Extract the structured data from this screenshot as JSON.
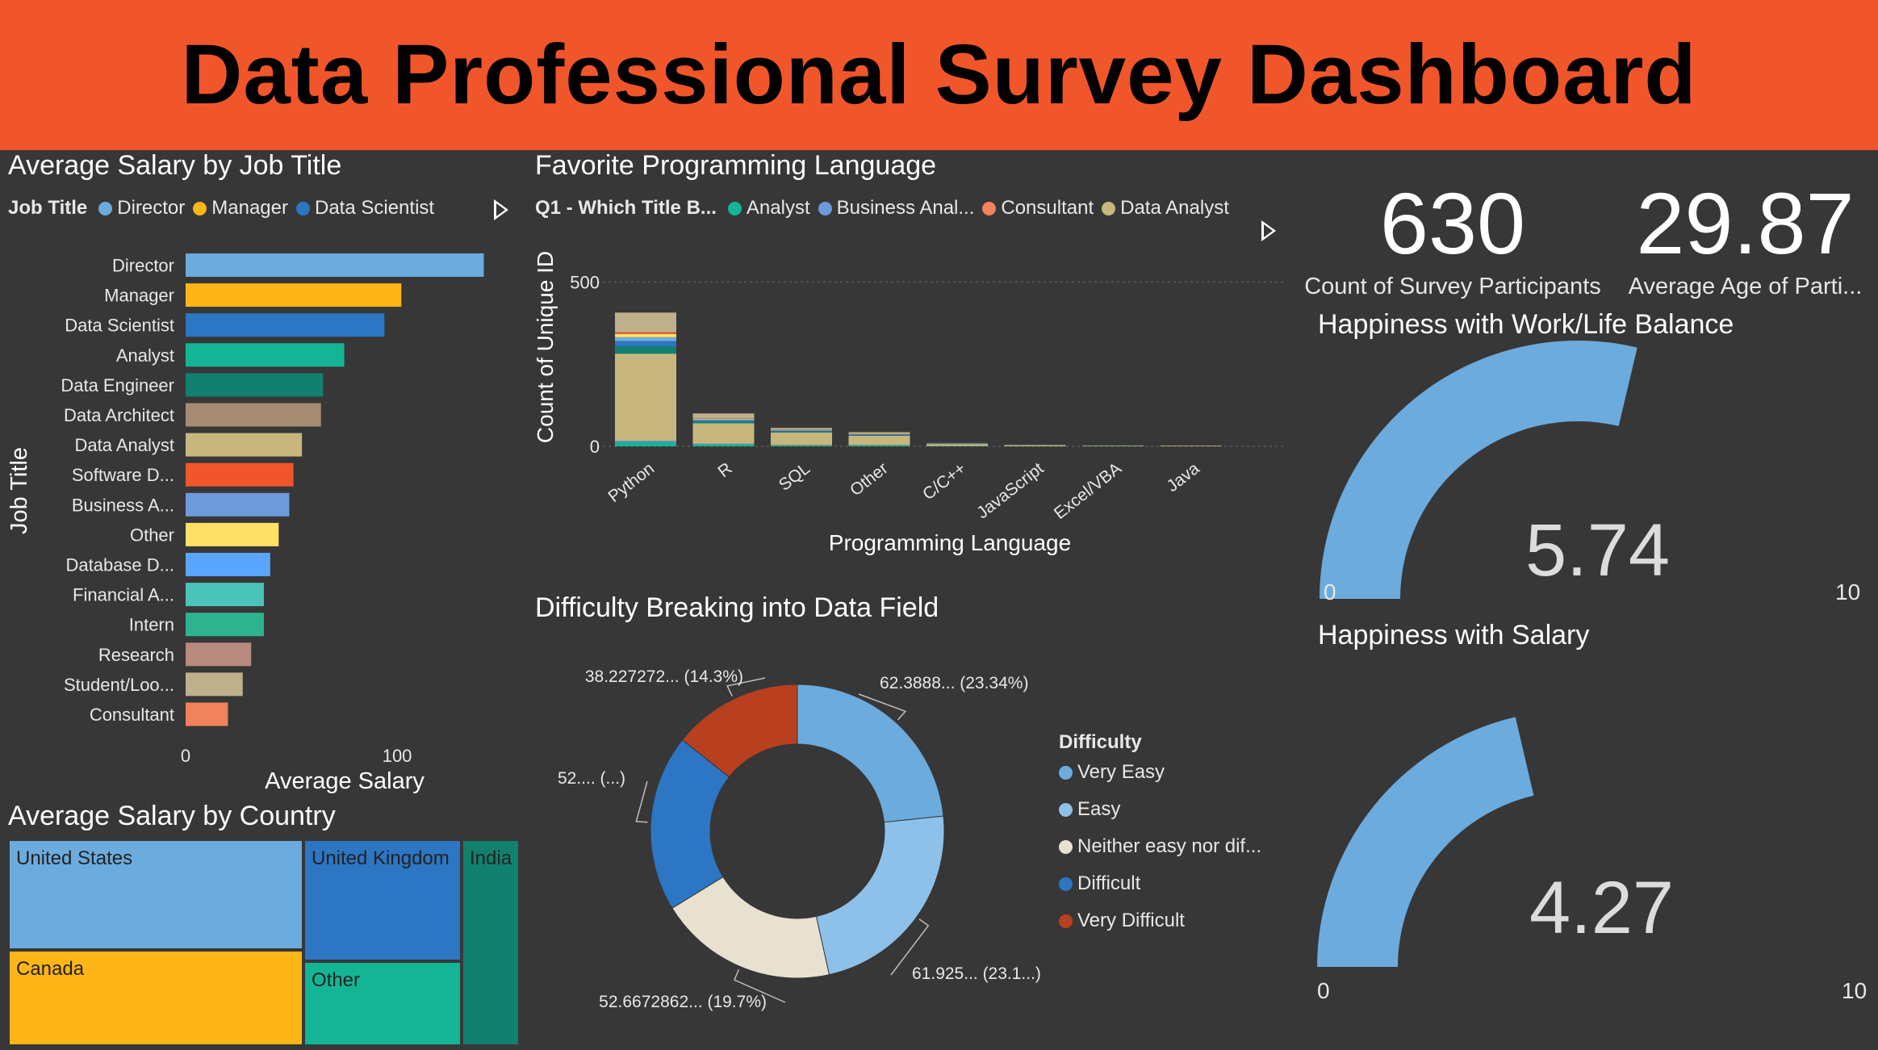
{
  "header": {
    "title": "Data Professional Survey Dashboard"
  },
  "colors": {
    "header_bg": "#F0562A",
    "background": "#373737",
    "gauge_fill": "#6CABDD"
  },
  "salary_by_job": {
    "title": "Average Salary by Job Title",
    "legend_title": "Job Title",
    "legend_items": [
      {
        "label": "Director",
        "color": "#6CABDD"
      },
      {
        "label": "Manager",
        "color": "#FDB517"
      },
      {
        "label": "Data Scientist",
        "color": "#2C76C3"
      }
    ],
    "more_icon": "play-icon"
  },
  "programming": {
    "title": "Favorite Programming Language",
    "legend_title": "Q1 - Which Title B...",
    "legend_items": [
      {
        "label": "Analyst",
        "color": "#13B595"
      },
      {
        "label": "Business Anal...",
        "color": "#6C9ADB"
      },
      {
        "label": "Consultant",
        "color": "#F0825C"
      },
      {
        "label": "Data Analyst",
        "color": "#C7B77E"
      }
    ],
    "more_icon": "play-icon"
  },
  "kpis": [
    {
      "value": "630",
      "label": "Count of Survey Participants"
    },
    {
      "value": "29.87",
      "label": "Average Age of Parti..."
    }
  ],
  "gauges": [
    {
      "title": "Happiness with Work/Life Balance",
      "value_text": "5.74",
      "value": 5.74,
      "min": "0",
      "max": "10",
      "min_num": 0,
      "max_num": 10
    },
    {
      "title": "Happiness with Salary",
      "value_text": "4.27",
      "value": 4.27,
      "min": "0",
      "max": "10",
      "min_num": 0,
      "max_num": 10
    }
  ],
  "country": {
    "title": "Average Salary by Country",
    "cells": [
      {
        "label": "United States",
        "color": "#6CABDD"
      },
      {
        "label": "Canada",
        "color": "#FDB517"
      },
      {
        "label": "United Kingdom",
        "color": "#2C76C3"
      },
      {
        "label": "Other",
        "color": "#13B595"
      },
      {
        "label": "India",
        "color": "#12806E"
      }
    ]
  },
  "difficulty": {
    "title": "Difficulty Breaking into Data Field",
    "legend_title": "Difficulty",
    "legend_items": [
      {
        "label": "Very Easy",
        "color": "#6CABDD"
      },
      {
        "label": "Easy",
        "color": "#8EC1EA"
      },
      {
        "label": "Neither easy nor dif...",
        "color": "#E8E1D0"
      },
      {
        "label": "Difficult",
        "color": "#2C76C3"
      },
      {
        "label": "Very Difficult",
        "color": "#B8401F"
      }
    ]
  },
  "chart_data": [
    {
      "type": "bar",
      "orientation": "horizontal",
      "title": "Average Salary by Job Title",
      "xlabel": "Average Salary",
      "ylabel": "Job Title",
      "xlim": [
        0,
        145
      ],
      "xticks": [
        0,
        100
      ],
      "categories": [
        "Director",
        "Manager",
        "Data Scientist",
        "Analyst",
        "Data Engineer",
        "Data Architect",
        "Data Analyst",
        "Software D...",
        "Business A...",
        "Other",
        "Database D...",
        "Financial A...",
        "Intern",
        "Research",
        "Student/Loo...",
        "Consultant"
      ],
      "values": [
        141,
        102,
        94,
        75,
        65,
        64,
        55,
        51,
        49,
        44,
        40,
        37,
        37,
        31,
        27,
        20
      ],
      "colors": [
        "#6CABDD",
        "#FDB517",
        "#2C76C3",
        "#13B595",
        "#12806E",
        "#A58C73",
        "#C7B77E",
        "#F0562A",
        "#6C9ADB",
        "#FFE066",
        "#5AA5FF",
        "#4CC3B8",
        "#2EB38F",
        "#B88A80",
        "#BEB08A",
        "#F0825C"
      ]
    },
    {
      "type": "bar",
      "stacked": true,
      "title": "Favorite Programming Language",
      "xlabel": "Programming Language",
      "ylabel": "Count of Unique ID",
      "ylim": [
        0,
        560
      ],
      "yticks": [
        0,
        500
      ],
      "categories": [
        "Python",
        "R",
        "SQL",
        "Other",
        "C/C++",
        "JavaScript",
        "Excel/VBA",
        "Java"
      ],
      "series": [
        {
          "name": "Analyst",
          "color": "#13B595",
          "values": [
            13,
            6,
            3,
            3,
            1,
            0,
            0,
            0
          ]
        },
        {
          "name": "Business Anal...",
          "color": "#6C9ADB",
          "values": [
            4,
            2,
            1,
            1,
            0,
            0,
            0,
            0
          ]
        },
        {
          "name": "Data Analyst",
          "color": "#C7B77E",
          "values": [
            265,
            62,
            38,
            28,
            6,
            3,
            2,
            2
          ]
        },
        {
          "name": "",
          "color": "#12806E",
          "values": [
            22,
            5,
            3,
            2,
            1,
            1,
            1,
            0
          ]
        },
        {
          "name": "",
          "color": "#2C76C3",
          "values": [
            16,
            4,
            2,
            2,
            1,
            0,
            0,
            0
          ]
        },
        {
          "name": "",
          "color": "#6CABDD",
          "values": [
            12,
            3,
            2,
            1,
            0,
            0,
            0,
            0
          ]
        },
        {
          "name": "",
          "color": "#FFE066",
          "values": [
            10,
            2,
            1,
            1,
            0,
            0,
            0,
            0
          ]
        },
        {
          "name": "",
          "color": "#F0562A",
          "values": [
            5,
            1,
            1,
            1,
            0,
            0,
            0,
            0
          ]
        },
        {
          "name": "",
          "color": "#BEB08A",
          "values": [
            60,
            15,
            5,
            4,
            1,
            1,
            0,
            0
          ]
        }
      ]
    },
    {
      "type": "pie",
      "donut": true,
      "title": "Difficulty Breaking into Data Field",
      "legend_title": "Difficulty",
      "labels": [
        "Very Easy",
        "Easy",
        "Neither easy nor dif...",
        "Difficult",
        "Very Difficult"
      ],
      "values": [
        62.3888,
        61.925,
        52.6672862,
        52.0,
        38.227272
      ],
      "percent": [
        23.34,
        23.1,
        19.7,
        19.5,
        14.3
      ],
      "data_labels": [
        "62.3888... (23.34%)",
        "61.925... (23.1...)",
        "52.6672862... (19.7%)",
        "52.... (...)",
        "38.227272... (14.3%)"
      ],
      "colors": [
        "#6CABDD",
        "#8EC1EA",
        "#E8E1D0",
        "#2C76C3",
        "#B8401F"
      ]
    },
    {
      "type": "treemap",
      "title": "Average Salary by Country",
      "labels": [
        "United States",
        "Canada",
        "United Kingdom",
        "Other",
        "India"
      ],
      "values": [
        22,
        21,
        17,
        15,
        11
      ],
      "colors": [
        "#6CABDD",
        "#FDB517",
        "#2C76C3",
        "#13B595",
        "#12806E"
      ]
    }
  ]
}
